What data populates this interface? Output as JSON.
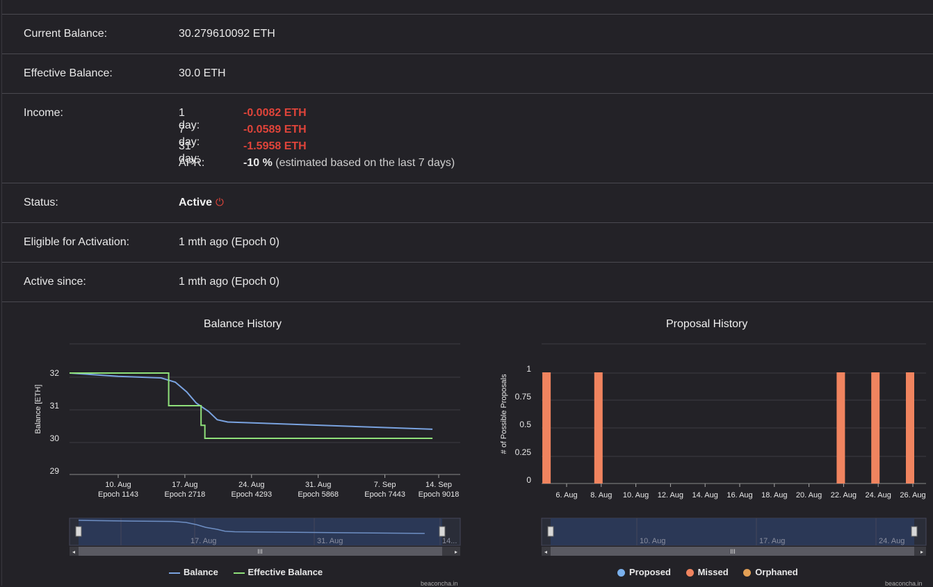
{
  "rows": {
    "current_balance": {
      "label": "Current Balance:",
      "value": "30.279610092 ETH"
    },
    "effective_balance": {
      "label": "Effective Balance:",
      "value": "30.0 ETH"
    },
    "income": {
      "label": "Income:",
      "lines": [
        {
          "key": "1 day:",
          "value": "-0.0082 ETH"
        },
        {
          "key": "7 day:",
          "value": "-0.0589 ETH"
        },
        {
          "key": "31 day:",
          "value": "-1.5958 ETH"
        }
      ],
      "apr": {
        "key": "APR:",
        "value": "-10 %",
        "note": "(estimated based on the last 7 days)"
      }
    },
    "status": {
      "label": "Status:",
      "value": "Active",
      "icon": "power-icon"
    },
    "eligible": {
      "label": "Eligible for Activation:",
      "value": "1 mth ago (Epoch 0)"
    },
    "active_since": {
      "label": "Active since:",
      "value": "1 mth ago (Epoch 0)"
    }
  },
  "colors": {
    "negative": "#e0443a",
    "balance": "#7aa3e0",
    "effective": "#8fe07a",
    "missed": "#f0845f",
    "proposed": "#7ab0ec",
    "orphaned": "#e3a055"
  },
  "chart_data": [
    {
      "type": "line",
      "title": "Balance History",
      "ylabel": "Balance [ETH]",
      "ylim": [
        29,
        32
      ],
      "yticks": [
        "32",
        "31",
        "30",
        "29"
      ],
      "xticks": [
        {
          "date": "10. Aug",
          "epoch": "Epoch 1143"
        },
        {
          "date": "17. Aug",
          "epoch": "Epoch 2718"
        },
        {
          "date": "24. Aug",
          "epoch": "Epoch 4293"
        },
        {
          "date": "31. Aug",
          "epoch": "Epoch 5868"
        },
        {
          "date": "7. Sep",
          "epoch": "Epoch 7443"
        },
        {
          "date": "14. Sep",
          "epoch": "Epoch 9018"
        }
      ],
      "series": [
        {
          "name": "Balance",
          "x": [
            3.8,
            10,
            14.5,
            16,
            17.2,
            18.2,
            19.5,
            20.4,
            21.5,
            43
          ],
          "y": [
            32.0,
            31.9,
            31.85,
            31.72,
            31.42,
            31.08,
            30.82,
            30.57,
            30.5,
            30.28
          ]
        },
        {
          "name": "Effective Balance",
          "x": [
            3.8,
            15.3,
            15.3,
            18.7,
            18.7,
            19.1,
            19.1,
            43
          ],
          "y": [
            32,
            32,
            31,
            31,
            30.4,
            30.4,
            30,
            30
          ]
        }
      ],
      "navigator": {
        "labels": [
          "17. Aug",
          "31. Aug",
          "14..."
        ]
      },
      "legend": [
        "Balance",
        "Effective Balance"
      ],
      "credit": "beaconcha.in"
    },
    {
      "type": "bar",
      "title": "Proposal History",
      "ylabel": "# of Possible Proposals",
      "ylim": [
        0,
        1
      ],
      "yticks": [
        "1",
        "0.75",
        "0.5",
        "0.25",
        "0"
      ],
      "xticks": [
        "6. Aug",
        "8. Aug",
        "10. Aug",
        "12. Aug",
        "14. Aug",
        "16. Aug",
        "18. Aug",
        "20. Aug",
        "22. Aug",
        "24. Aug",
        "26. Aug"
      ],
      "series": [
        {
          "name": "Missed",
          "x": [
            "5. Aug",
            "8. Aug",
            "22. Aug",
            "24. Aug",
            "26. Aug"
          ],
          "values": [
            1,
            1,
            1,
            1,
            1
          ]
        }
      ],
      "navigator": {
        "labels": [
          "10. Aug",
          "17. Aug",
          "24. Aug"
        ]
      },
      "legend": [
        "Proposed",
        "Missed",
        "Orphaned"
      ],
      "credit": "beaconcha.in"
    }
  ]
}
